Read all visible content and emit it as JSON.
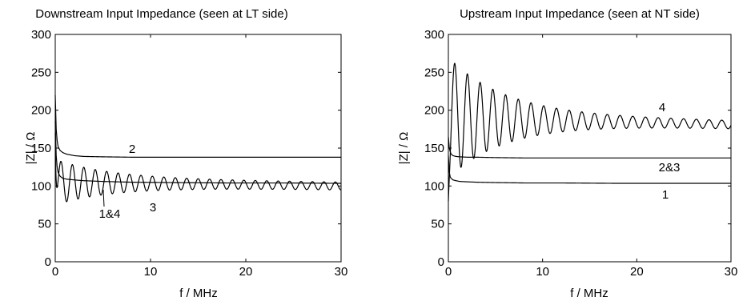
{
  "chart_data": [
    {
      "type": "line",
      "title": "Downstream Input Impedance (seen at LT side)",
      "xlabel": "f / MHz",
      "ylabel": "|Z| / Ω",
      "xlim": [
        0,
        30
      ],
      "ylim": [
        0,
        300
      ],
      "xticks": [
        "0",
        "10",
        "20",
        "30"
      ],
      "yticks": [
        "0",
        "50",
        "100",
        "150",
        "200",
        "250",
        "300"
      ],
      "grid": false,
      "annotations": [
        "2",
        "3",
        "1&4"
      ],
      "series": [
        {
          "label": "2",
          "x": [
            0,
            0.1,
            0.2,
            0.3,
            0.5,
            0.8,
            1.2,
            2,
            3,
            5,
            8,
            12,
            18,
            24,
            30
          ],
          "y": [
            220,
            175,
            160,
            152,
            147,
            144,
            142,
            140,
            139,
            138.5,
            138,
            138,
            138,
            138,
            138
          ]
        },
        {
          "label": "1&4",
          "x": [
            0,
            0.1,
            0.2,
            0.3,
            0.5,
            0.8,
            1.2,
            2,
            3,
            5,
            8,
            12,
            18,
            24,
            30
          ],
          "y": [
            185,
            140,
            125,
            118,
            113,
            110,
            109,
            108,
            107,
            106,
            105,
            104.5,
            104,
            104,
            103.5
          ]
        },
        {
          "label": "3",
          "oscillation": {
            "period_mhz": 1.2,
            "mean_start": 105,
            "mean_end": 100,
            "amp_start": 25,
            "amp_end": 5
          },
          "x": [
            0,
            0.15,
            0.55,
            1.15,
            1.75,
            2.35,
            2.95,
            4.75,
            10.15,
            20.35,
            29.95
          ],
          "y": [
            200,
            120,
            82,
            128,
            84,
            124,
            86,
            120,
            112,
            105,
            99
          ]
        }
      ]
    },
    {
      "type": "line",
      "title": "Upstream Input Impedance (seen at NT side)",
      "xlabel": "f / MHz",
      "ylabel": "|Z| / Ω",
      "xlim": [
        0,
        30
      ],
      "ylim": [
        0,
        300
      ],
      "xticks": [
        "0",
        "10",
        "20",
        "30"
      ],
      "yticks": [
        "0",
        "50",
        "100",
        "150",
        "200",
        "250",
        "300"
      ],
      "grid": false,
      "annotations": [
        "4",
        "2&3",
        "1"
      ],
      "series": [
        {
          "label": "4",
          "oscillation": {
            "period_mhz": 1.35,
            "mean_start": 190,
            "mean_end": 181,
            "amp_start": 75,
            "amp_end": 5
          },
          "x": [
            0,
            0.15,
            0.68,
            1.35,
            2.03,
            2.7,
            3.38,
            4.73,
            10.13,
            20.25,
            29.7
          ],
          "y": [
            160,
            140,
            266,
            118,
            254,
            128,
            243,
            237,
            214,
            196,
            185
          ]
        },
        {
          "label": "2&3",
          "x": [
            0,
            0.1,
            0.2,
            0.3,
            0.5,
            0.8,
            1.2,
            2,
            3,
            5,
            8,
            12,
            18,
            24,
            30
          ],
          "y": [
            165,
            150,
            145,
            142,
            140,
            139,
            138.5,
            138,
            138,
            137.5,
            137,
            137,
            137,
            137,
            137
          ]
        },
        {
          "label": "1",
          "x": [
            0,
            0.1,
            0.2,
            0.3,
            0.5,
            0.8,
            1.2,
            2,
            3,
            5,
            8,
            12,
            18,
            24,
            30
          ],
          "y": [
            140,
            118,
            112,
            110,
            108,
            107,
            106,
            105.5,
            105,
            104.5,
            104,
            104,
            103.5,
            103.5,
            103.5
          ]
        }
      ]
    }
  ]
}
